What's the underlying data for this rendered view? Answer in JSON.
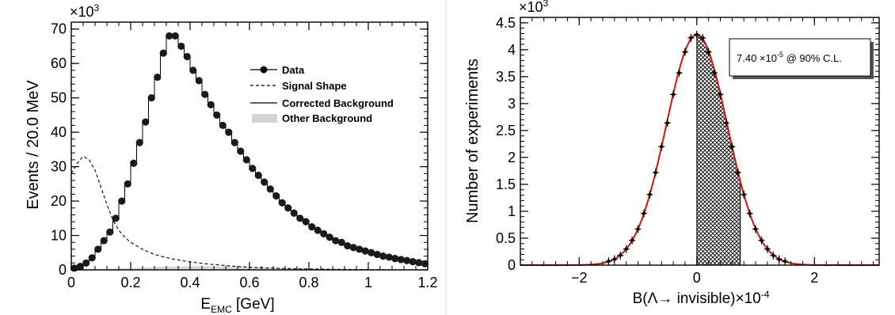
{
  "chart_data": [
    {
      "type": "line",
      "xlabel_main": "E",
      "xlabel_sub": "EMC",
      "xlabel_unit": " [GeV]",
      "ylabel": "Events / 20.0 MeV",
      "multiplier": "×10",
      "multiplier_exp": "3",
      "xlim": [
        0,
        1.2
      ],
      "ylim": [
        0,
        72
      ],
      "xticks": [
        "0",
        "0.2",
        "0.4",
        "0.6",
        "0.8",
        "1",
        "1.2"
      ],
      "yticks": [
        "0",
        "10",
        "20",
        "30",
        "40",
        "50",
        "60",
        "70"
      ],
      "grid": false,
      "legend_position": "upper-right",
      "legend": [
        "Data",
        "Signal Shape",
        "Corrected Background",
        "Other Background"
      ],
      "series": [
        {
          "name": "Data",
          "x": [
            0.01,
            0.03,
            0.05,
            0.07,
            0.09,
            0.11,
            0.13,
            0.15,
            0.17,
            0.19,
            0.21,
            0.23,
            0.25,
            0.27,
            0.29,
            0.31,
            0.33,
            0.35,
            0.37,
            0.39,
            0.41,
            0.43,
            0.45,
            0.47,
            0.49,
            0.51,
            0.53,
            0.55,
            0.57,
            0.59,
            0.61,
            0.63,
            0.65,
            0.67,
            0.69,
            0.71,
            0.73,
            0.75,
            0.77,
            0.79,
            0.81,
            0.83,
            0.85,
            0.87,
            0.89,
            0.91,
            0.93,
            0.95,
            0.97,
            0.99,
            1.01,
            1.03,
            1.05,
            1.07,
            1.09,
            1.11,
            1.13,
            1.15,
            1.17,
            1.19
          ],
          "values": [
            0.5,
            1,
            2,
            3.5,
            6,
            8.5,
            11,
            15,
            20,
            25,
            31,
            37,
            43,
            50,
            56,
            63,
            68,
            68,
            65,
            62,
            58,
            55,
            51,
            48,
            45,
            42,
            40,
            37,
            34.5,
            32,
            29.5,
            27.5,
            25.5,
            23.5,
            21.5,
            19.5,
            18,
            16.5,
            15,
            14,
            12.5,
            11.5,
            10.5,
            9.5,
            8.5,
            8,
            7,
            6.5,
            6,
            5.5,
            5,
            4.5,
            4,
            3.7,
            3.3,
            3,
            2.7,
            2.4,
            2.1,
            1.8
          ]
        },
        {
          "name": "Signal Shape",
          "x": [
            0,
            0.02,
            0.04,
            0.06,
            0.08,
            0.1,
            0.12,
            0.14,
            0.16,
            0.18,
            0.2,
            0.22,
            0.24,
            0.26,
            0.28,
            0.3,
            0.34,
            0.38,
            0.42,
            0.46,
            0.5,
            0.54,
            0.58,
            0.62,
            0.66,
            0.7,
            0.74,
            0.78,
            0.82,
            0.86,
            0.9,
            0.94,
            0.98,
            1.02,
            1.06,
            1.1,
            1.14,
            1.2
          ],
          "values": [
            28,
            31,
            33,
            32,
            29,
            24,
            19,
            14.5,
            11.5,
            9.5,
            8,
            7,
            6,
            5.2,
            4.5,
            4,
            3.2,
            2.6,
            2.1,
            1.7,
            1.4,
            1.1,
            0.9,
            0.7,
            0.55,
            0.45,
            0.35,
            0.3,
            0.25,
            0.2,
            0.15,
            0.12,
            0.1,
            0.08,
            0.06,
            0.05,
            0.04,
            0.03
          ]
        },
        {
          "name": "Corrected Background",
          "x": [
            0,
            0.02,
            0.04,
            0.06,
            0.08,
            0.1,
            0.12,
            0.14,
            0.16,
            0.18,
            0.2,
            0.22,
            0.24,
            0.26,
            0.28,
            0.3,
            0.32,
            0.34,
            0.36,
            0.38,
            0.4,
            0.42,
            0.44,
            0.46,
            0.48,
            0.5,
            0.52,
            0.54,
            0.56,
            0.58,
            0.6,
            0.62,
            0.64,
            0.66,
            0.68,
            0.7,
            0.72,
            0.74,
            0.76,
            0.78,
            0.8,
            0.82,
            0.84,
            0.86,
            0.88,
            0.9,
            0.92,
            0.94,
            0.96,
            0.98,
            1,
            1.02,
            1.04,
            1.06,
            1.08,
            1.1,
            1.12,
            1.14,
            1.16,
            1.18
          ],
          "values": [
            0.5,
            1,
            2,
            3.5,
            6,
            8.5,
            11,
            15,
            20,
            25,
            31,
            37,
            43,
            50,
            56,
            63,
            68,
            68,
            65,
            62,
            58,
            55,
            51,
            48,
            45,
            42,
            40,
            37,
            34.5,
            32,
            29.5,
            27.5,
            25.5,
            23.5,
            21.5,
            19.5,
            18,
            16.5,
            15,
            14,
            12.5,
            11.5,
            10.5,
            9.5,
            8.5,
            8,
            7,
            6.5,
            6,
            5.5,
            5,
            4.5,
            4,
            3.7,
            3.3,
            3,
            2.7,
            2.4,
            2.1,
            1.8
          ]
        },
        {
          "name": "Other Background",
          "x": [
            0,
            0.1,
            0.2,
            0.3,
            0.4,
            0.5,
            0.6,
            0.7,
            0.8,
            0.9,
            1.0,
            1.1,
            1.2
          ],
          "values": [
            0.2,
            0.3,
            0.5,
            0.9,
            1.1,
            1.0,
            0.8,
            0.6,
            0.4,
            0.3,
            0.2,
            0.15,
            0.1
          ]
        }
      ]
    },
    {
      "type": "line",
      "xlabel": "B(Λ→ invisible)×10",
      "xlabel_exp": "-4",
      "ylabel": "Number of experiments",
      "multiplier": "×10",
      "multiplier_exp": "3",
      "xlim": [
        -3.0,
        3.1
      ],
      "ylim": [
        0,
        4.6
      ],
      "xticks": [
        "−2",
        "0",
        "2"
      ],
      "xtick_values": [
        -2,
        0,
        2
      ],
      "yticks": [
        "0",
        "0.5",
        "1",
        "1.5",
        "2",
        "2.5",
        "3",
        "3.5",
        "4",
        "4.5"
      ],
      "grid": false,
      "hatched_range": [
        0,
        0.74
      ],
      "annotation_value": "7.40 ×10",
      "annotation_exp": "-5",
      "annotation_suffix": " @ 90% C.L.",
      "gauss_peak": 4.28,
      "gauss_mean": 0.0,
      "gauss_sigma": 0.52,
      "series": [
        {
          "name": "Data",
          "x": [
            -1.5,
            -1.4,
            -1.3,
            -1.2,
            -1.1,
            -1.0,
            -0.9,
            -0.8,
            -0.7,
            -0.6,
            -0.5,
            -0.4,
            -0.3,
            -0.2,
            -0.1,
            0.0,
            0.1,
            0.2,
            0.3,
            0.4,
            0.5,
            0.6,
            0.7,
            0.8,
            0.9,
            1.0,
            1.1,
            1.2,
            1.3,
            1.4,
            1.5
          ],
          "values": [
            0.07,
            0.11,
            0.18,
            0.3,
            0.46,
            0.67,
            0.96,
            1.31,
            1.72,
            2.2,
            2.64,
            3.17,
            3.57,
            3.96,
            4.22,
            4.28,
            4.22,
            3.96,
            3.57,
            3.17,
            2.64,
            2.2,
            1.72,
            1.31,
            0.96,
            0.67,
            0.46,
            0.3,
            0.18,
            0.11,
            0.07
          ]
        }
      ]
    }
  ]
}
